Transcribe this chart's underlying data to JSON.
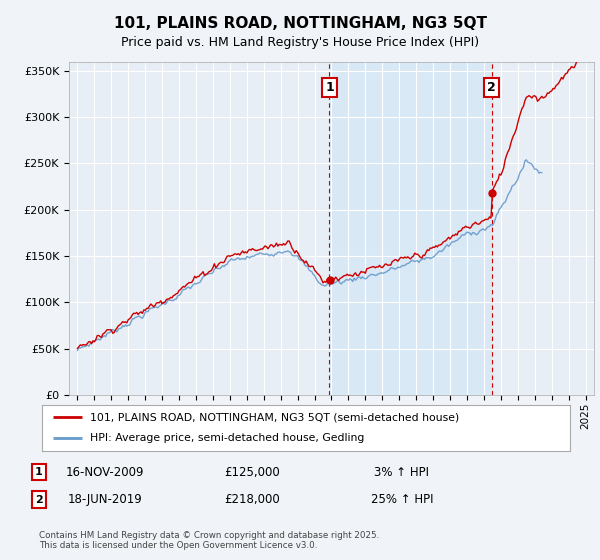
{
  "title": "101, PLAINS ROAD, NOTTINGHAM, NG3 5QT",
  "subtitle": "Price paid vs. HM Land Registry's House Price Index (HPI)",
  "legend_line1": "101, PLAINS ROAD, NOTTINGHAM, NG3 5QT (semi-detached house)",
  "legend_line2": "HPI: Average price, semi-detached house, Gedling",
  "annotation1_date": "16-NOV-2009",
  "annotation1_price": "£125,000",
  "annotation1_hpi": "3% ↑ HPI",
  "annotation2_date": "18-JUN-2019",
  "annotation2_price": "£218,000",
  "annotation2_hpi": "25% ↑ HPI",
  "footer": "Contains HM Land Registry data © Crown copyright and database right 2025.\nThis data is licensed under the Open Government Licence v3.0.",
  "vline1_year": 2009.88,
  "vline2_year": 2019.46,
  "bg_color": "#f0f4f8",
  "plot_bg": "#e8eef5",
  "grid_color": "#ffffff",
  "red_color": "#cc0000",
  "blue_color": "#6699cc",
  "shade_color": "#d8e8f4",
  "ylim": [
    0,
    360000
  ],
  "xlim_start": 1994.5,
  "xlim_end": 2025.5
}
